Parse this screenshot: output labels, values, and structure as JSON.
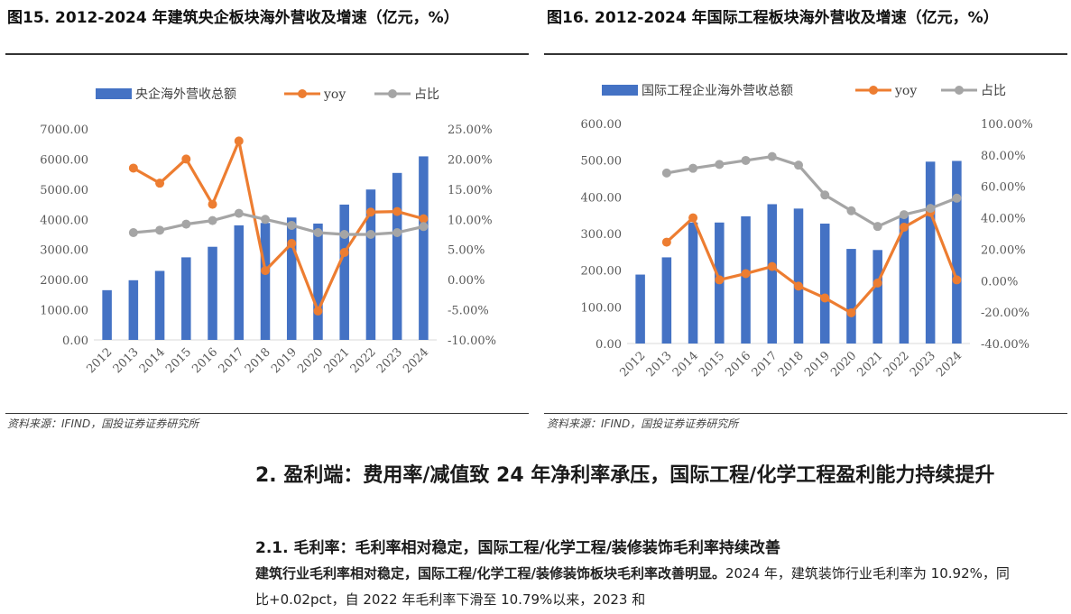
{
  "figures": [
    {
      "title": "图15. 2012-2024 年建筑央企板块海外营收及增速（亿元，%）",
      "source": "资料来源：IFIND，国投证券证券研究所"
    },
    {
      "title": "图16. 2012-2024 年国际工程板块海外营收及增速（亿元，%）",
      "source": "资料来源：IFIND，国投证券证券研究所"
    }
  ],
  "section": {
    "heading": "2. 盈利端：费用率/减值致 24 年净利率承压，国际工程/化学工程盈利能力持续提升",
    "subheading": "2.1. 毛利率：毛利率相对稳定，国际工程/化学工程/装修装饰毛利率持续改善",
    "body_bold": "建筑行业毛利率相对稳定，国际工程/化学工程/装修装饰板块毛利率改善明显。",
    "body_text": "2024 年，建筑装饰行业毛利率为 10.92%，同比+0.02pct，自 2022 年毛利率下滑至 10.79%以来，2023 和"
  },
  "colors": {
    "bar": "#4472C4",
    "yoy": "#ED7D31",
    "share": "#A5A5A5"
  },
  "chart_data": [
    {
      "type": "bar",
      "categories": [
        "2012",
        "2013",
        "2014",
        "2015",
        "2016",
        "2017",
        "2018",
        "2019",
        "2020",
        "2021",
        "2022",
        "2023",
        "2024"
      ],
      "series": [
        {
          "name": "央企海外营收总额",
          "kind": "bar",
          "axis": "left",
          "values": [
            1650,
            1980,
            2290,
            2740,
            3090,
            3800,
            3880,
            4060,
            3860,
            4490,
            4990,
            5540,
            6090
          ]
        },
        {
          "name": "yoy",
          "kind": "line",
          "axis": "right",
          "values": [
            null,
            18.5,
            16.0,
            20.0,
            12.5,
            23.0,
            1.5,
            6.0,
            -5.2,
            4.5,
            11.2,
            11.3,
            10.1
          ]
        },
        {
          "name": "占比",
          "kind": "line",
          "axis": "right",
          "values": [
            null,
            7.8,
            8.2,
            9.2,
            9.8,
            11.0,
            10.0,
            9.0,
            7.8,
            7.5,
            7.5,
            7.8,
            8.8
          ]
        }
      ],
      "left_axis": {
        "ticks": [
          "0.00",
          "1000.00",
          "2000.00",
          "3000.00",
          "4000.00",
          "5000.00",
          "6000.00",
          "7000.00"
        ],
        "ylim": [
          0,
          7000
        ]
      },
      "right_axis": {
        "ticks": [
          "-10.00%",
          "-5.00%",
          "0.00%",
          "5.00%",
          "10.00%",
          "15.00%",
          "20.00%",
          "25.00%"
        ],
        "ylim": [
          -10,
          25
        ]
      },
      "grid": false,
      "legend": "top"
    },
    {
      "type": "bar",
      "categories": [
        "2012",
        "2013",
        "2014",
        "2015",
        "2016",
        "2017",
        "2018",
        "2019",
        "2020",
        "2021",
        "2022",
        "2023",
        "2024"
      ],
      "series": [
        {
          "name": "国际工程企业海外营收总额",
          "kind": "bar",
          "axis": "left",
          "values": [
            188,
            235,
            330,
            330,
            347,
            380,
            368,
            327,
            258,
            255,
            350,
            496,
            498
          ]
        },
        {
          "name": "yoy",
          "kind": "line",
          "axis": "right",
          "values": [
            null,
            24.5,
            40.0,
            0.5,
            4.5,
            9.0,
            -3.5,
            -11.0,
            -20.5,
            -1.5,
            34.0,
            43.5,
            0.5
          ]
        },
        {
          "name": "占比",
          "kind": "line",
          "axis": "right",
          "values": [
            null,
            68.5,
            71.5,
            74.0,
            76.5,
            79.0,
            73.5,
            54.5,
            44.5,
            34.5,
            42.0,
            46.0,
            52.5
          ]
        }
      ],
      "left_axis": {
        "ticks": [
          "0.00",
          "100.00",
          "200.00",
          "300.00",
          "400.00",
          "500.00",
          "600.00"
        ],
        "ylim": [
          0,
          600
        ]
      },
      "right_axis": {
        "ticks": [
          "-40.00%",
          "-20.00%",
          "0.00%",
          "20.00%",
          "40.00%",
          "60.00%",
          "80.00%",
          "100.00%"
        ],
        "ylim": [
          -40,
          100
        ]
      },
      "grid": false,
      "legend": "top"
    }
  ]
}
